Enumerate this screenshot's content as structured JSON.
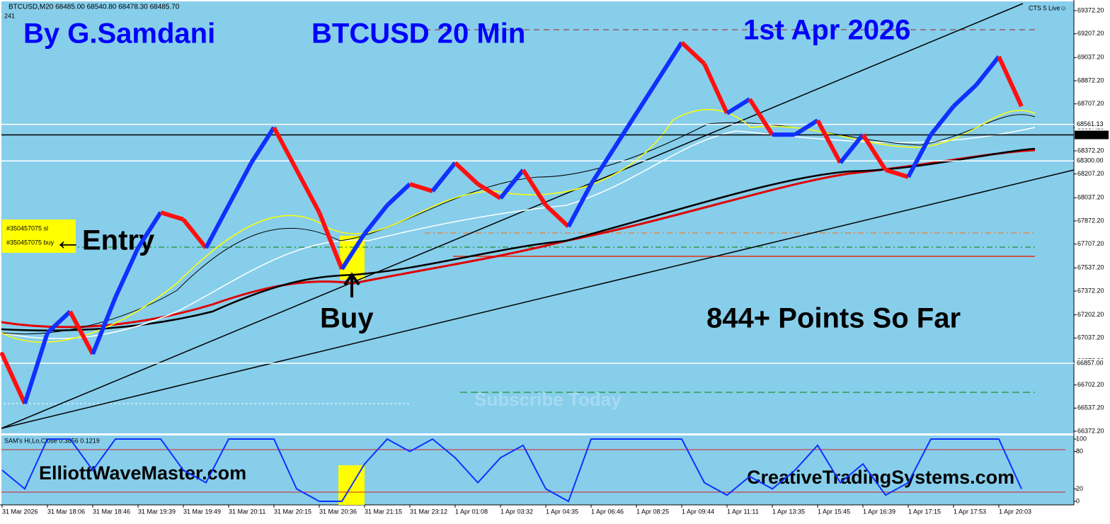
{
  "header": {
    "symbol": "BTCUSD,M20 68485.00 68540.80 68478.30 68485.70",
    "bars": "241",
    "live": "CTS 5 Live☺"
  },
  "annotations": {
    "author": "By G.Samdani",
    "instrument": "BTCUSD 20 Min",
    "date": "1st Apr 2026",
    "entry": "←Entry",
    "order_sl": "#350457075 sl",
    "order_buy": "#350457075 buy",
    "buy": "Buy",
    "points": "844+ Points So Far",
    "subscribe": "Subscribe Today",
    "site1": "ElliottWaveMaster.com",
    "site2": "CreativeTradingSystems.com"
  },
  "chart_data": [
    {
      "type": "line",
      "categories": [
        "31 Mar 2026",
        null,
        "31 Mar 18:06",
        null,
        "31 Mar 18:46",
        null,
        "31 Mar 19:39",
        null,
        "31 Mar 19:49",
        null,
        "31 Mar 20:11",
        null,
        "31 Mar 20:15",
        null,
        "31 Mar 20:36",
        null,
        "31 Mar 21:15",
        null,
        "31 Mar 23:12",
        null,
        "1 Apr 01:08",
        null,
        "1 Apr 03:32",
        null,
        "1 Apr 04:35",
        null,
        "1 Apr 06:46",
        null,
        "1 Apr 08:25",
        null,
        "1 Apr 09:44",
        null,
        "1 Apr 11:11",
        null,
        "1 Apr 13:35",
        null,
        "1 Apr 15:45",
        null,
        "1 Apr 16:39",
        null,
        "1 Apr 17:15",
        null,
        "1 Apr 17:53",
        null,
        "1 Apr 20:03",
        null
      ],
      "series": [
        {
          "up_color": "#1030ff",
          "down_color": "#ff1010",
          "values": [
            66923,
            66569,
            67074,
            67226,
            66923,
            67327,
            67680,
            67933,
            67883,
            67680,
            67984,
            68287,
            68539,
            68236,
            67933,
            67529,
            67781,
            67984,
            68135,
            68085,
            68287,
            68135,
            68034,
            68236,
            67984,
            67832,
            68135,
            68387,
            68640,
            68892,
            69145,
            68993,
            68640,
            68741,
            68488,
            68488,
            68589,
            68287,
            68488,
            68236,
            68186,
            68488,
            68690,
            68842,
            69044,
            68690
          ]
        }
      ],
      "ylim": [
        66357,
        69438
      ],
      "yticks": [
        {
          "value": 69372.2,
          "label": "69372.20"
        },
        {
          "value": 69207.2,
          "label": "69207.20"
        },
        {
          "value": 69037.2,
          "label": "69037.20"
        },
        {
          "value": 68872.2,
          "label": "68872.20"
        },
        {
          "value": 68707.2,
          "label": "68707.20"
        },
        {
          "value": 68537.2,
          "label": "68537.20"
        },
        {
          "value": 68372.2,
          "label": "68372.20"
        },
        {
          "value": 68207.2,
          "label": "68207.20"
        },
        {
          "value": 68037.2,
          "label": "68037.20"
        },
        {
          "value": 67872.2,
          "label": "67872.20"
        },
        {
          "value": 67707.2,
          "label": "67707.20"
        },
        {
          "value": 67537.2,
          "label": "67537.20"
        },
        {
          "value": 67372.2,
          "label": "67372.20"
        },
        {
          "value": 67202.2,
          "label": "67202.20"
        },
        {
          "value": 67037.2,
          "label": "67037.20"
        },
        {
          "value": 66872.2,
          "label": "66872.20"
        },
        {
          "value": 66702.2,
          "label": "66702.20"
        },
        {
          "value": 66537.2,
          "label": "66537.20"
        },
        {
          "value": 66372.2,
          "label": "66372.20"
        }
      ],
      "levels": [
        {
          "value": 68561.13,
          "label": "68561.13",
          "color": "#ffffff"
        },
        {
          "value": 68485.7,
          "label": "68485.70",
          "color": "#000000"
        },
        {
          "value": 68300.0,
          "label": "68300.00",
          "color": "#ffffff"
        },
        {
          "value": 66857.0,
          "label": "66857.00",
          "color": "#ffffff"
        }
      ]
    },
    {
      "type": "line",
      "title": "SAM's Hi,Lo,Close 0.3856 0.1219",
      "series": [
        {
          "color": "#1030ff",
          "values": [
            50,
            20,
            100,
            100,
            50,
            100,
            100,
            100,
            50,
            30,
            100,
            100,
            100,
            20,
            0,
            0,
            60,
            100,
            80,
            100,
            70,
            30,
            70,
            90,
            20,
            0,
            100,
            100,
            100,
            100,
            100,
            30,
            10,
            40,
            20,
            50,
            90,
            30,
            60,
            10,
            30,
            100,
            100,
            100,
            100,
            20
          ]
        }
      ],
      "ylim": [
        -4.5,
        105.7
      ],
      "yticks": [
        100,
        80,
        20,
        0
      ]
    }
  ]
}
